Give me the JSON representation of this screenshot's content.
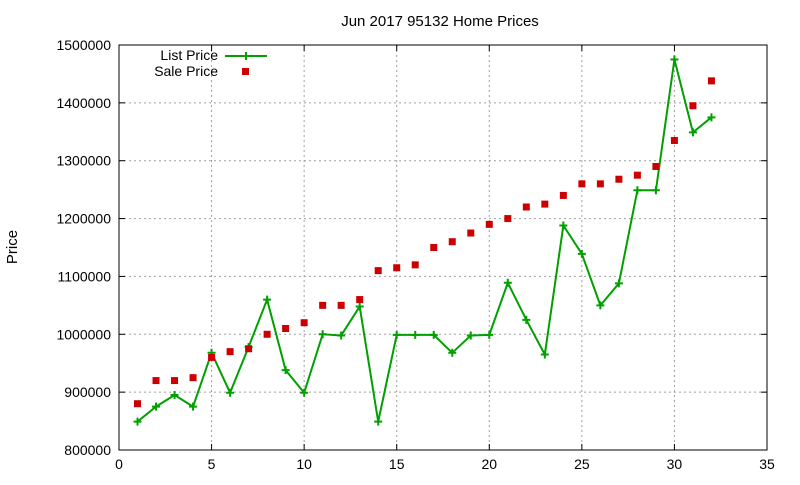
{
  "chart_data": {
    "type": "line",
    "title": "Jun 2017 95132 Home Prices",
    "xlabel": "",
    "ylabel": "Price",
    "xlim": [
      0,
      35
    ],
    "ylim": [
      800000,
      1500000
    ],
    "x_ticks": [
      0,
      5,
      10,
      15,
      20,
      25,
      30,
      35
    ],
    "y_ticks": [
      800000,
      900000,
      1000000,
      1100000,
      1200000,
      1300000,
      1400000,
      1500000
    ],
    "x_tick_labels": [
      "0",
      "5",
      "10",
      "15",
      "20",
      "25",
      "30",
      "35"
    ],
    "y_tick_labels": [
      "800000",
      "900000",
      "1000000",
      "1100000",
      "1200000",
      "1300000",
      "1400000",
      "1500000"
    ],
    "grid": true,
    "legend_position": "top-left",
    "series": [
      {
        "name": "List Price",
        "style": "line-with-plus-markers",
        "color": "#00a000",
        "x": [
          1,
          2,
          3,
          4,
          5,
          6,
          7,
          8,
          9,
          10,
          11,
          12,
          13,
          14,
          15,
          16,
          17,
          18,
          19,
          20,
          21,
          22,
          23,
          24,
          25,
          26,
          27,
          28,
          29,
          30,
          31,
          32
        ],
        "y": [
          849000,
          875000,
          895000,
          875000,
          968000,
          899000,
          978000,
          1060000,
          938000,
          899000,
          1000000,
          998000,
          1048000,
          849000,
          999000,
          999000,
          999000,
          968000,
          998000,
          999000,
          1089000,
          1025000,
          965000,
          1188000,
          1139000,
          1050000,
          1088000,
          1249000,
          1249000,
          1475000,
          1349000,
          1375000
        ]
      },
      {
        "name": "Sale Price",
        "style": "square-markers",
        "color": "#cc0000",
        "x": [
          1,
          2,
          3,
          4,
          5,
          6,
          7,
          8,
          9,
          10,
          11,
          12,
          13,
          14,
          15,
          16,
          17,
          18,
          19,
          20,
          21,
          22,
          23,
          24,
          25,
          26,
          27,
          28,
          29,
          30,
          31,
          32
        ],
        "y": [
          880000,
          920000,
          920000,
          925000,
          960000,
          970000,
          975000,
          1000000,
          1010000,
          1020000,
          1050000,
          1050000,
          1060000,
          1110000,
          1115000,
          1120000,
          1150000,
          1160000,
          1175000,
          1190000,
          1200000,
          1220000,
          1225000,
          1240000,
          1260000,
          1260000,
          1268000,
          1275000,
          1290000,
          1335000,
          1395000,
          1438000
        ]
      }
    ]
  }
}
